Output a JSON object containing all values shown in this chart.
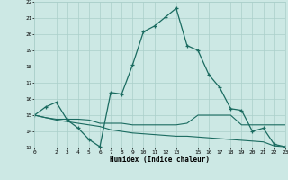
{
  "xlabel": "Humidex (Indice chaleur)",
  "bg_color": "#cce8e4",
  "grid_color": "#aacfca",
  "line_color": "#1a6b60",
  "xlim": [
    0,
    23
  ],
  "ylim": [
    13,
    22
  ],
  "xticks": [
    0,
    2,
    3,
    4,
    5,
    6,
    7,
    8,
    9,
    10,
    11,
    12,
    13,
    15,
    16,
    17,
    18,
    19,
    20,
    21,
    22,
    23
  ],
  "yticks": [
    13,
    14,
    15,
    16,
    17,
    18,
    19,
    20,
    21,
    22
  ],
  "curve1_x": [
    0,
    1,
    2,
    3,
    4,
    5,
    6,
    7,
    8,
    9,
    10,
    11,
    12,
    13,
    14,
    15,
    16,
    17,
    18,
    19,
    20,
    21,
    22,
    23
  ],
  "curve1_y": [
    15.0,
    15.5,
    15.8,
    14.7,
    14.2,
    13.5,
    13.05,
    16.4,
    16.3,
    18.1,
    20.15,
    20.5,
    21.05,
    21.6,
    19.3,
    19.0,
    17.5,
    16.7,
    15.4,
    15.3,
    14.0,
    14.2,
    13.2,
    13.05
  ],
  "curve2_x": [
    0,
    1,
    2,
    3,
    4,
    5,
    6,
    7,
    8,
    9,
    10,
    11,
    12,
    13,
    14,
    15,
    16,
    17,
    18,
    19,
    20,
    21,
    22,
    23
  ],
  "curve2_y": [
    15.0,
    14.85,
    14.75,
    14.75,
    14.75,
    14.7,
    14.5,
    14.5,
    14.5,
    14.4,
    14.4,
    14.4,
    14.4,
    14.4,
    14.5,
    15.0,
    15.0,
    15.0,
    15.0,
    14.4,
    14.4,
    14.4,
    14.4,
    14.4
  ],
  "curve3_x": [
    0,
    1,
    2,
    3,
    4,
    5,
    6,
    7,
    8,
    9,
    10,
    11,
    12,
    13,
    14,
    15,
    16,
    17,
    18,
    19,
    20,
    21,
    22,
    23
  ],
  "curve3_y": [
    15.0,
    14.85,
    14.7,
    14.6,
    14.5,
    14.4,
    14.3,
    14.1,
    14.0,
    13.9,
    13.85,
    13.8,
    13.75,
    13.7,
    13.7,
    13.65,
    13.6,
    13.55,
    13.5,
    13.45,
    13.4,
    13.35,
    13.1,
    13.05
  ]
}
